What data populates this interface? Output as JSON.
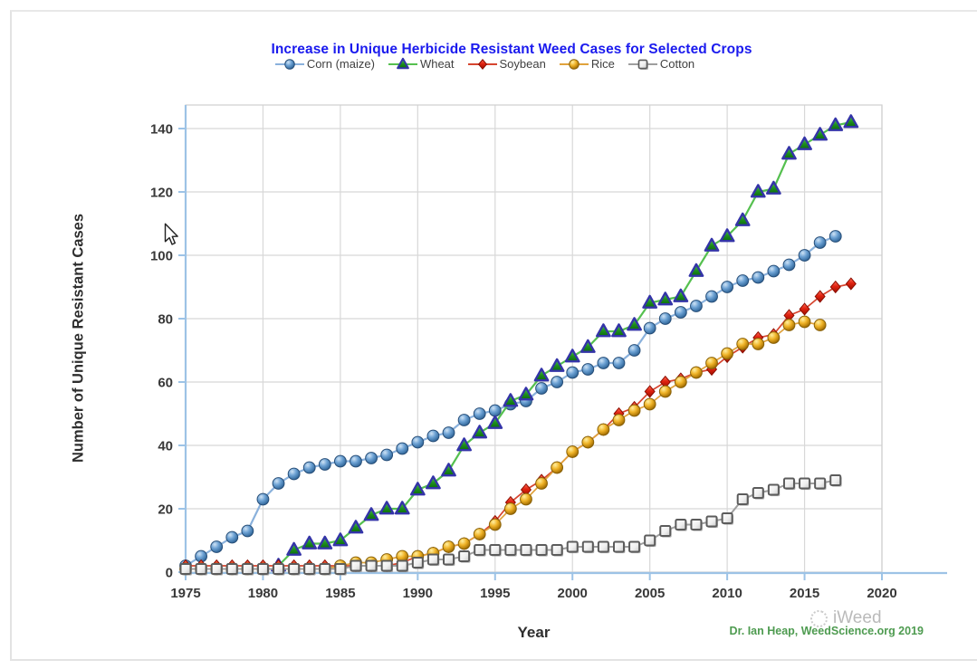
{
  "chart_data": {
    "type": "line",
    "title": "Increase in Unique Herbicide Resistant Weed Cases for Selected Crops",
    "xlabel": "Year",
    "ylabel": "Number of Unique Resistant Cases",
    "xlim": [
      1975,
      2020
    ],
    "ylim": [
      0,
      147
    ],
    "xticks": [
      1975,
      1980,
      1985,
      1990,
      1995,
      2000,
      2005,
      2010,
      2015,
      2020
    ],
    "yticks": [
      0,
      20,
      40,
      60,
      80,
      100,
      120,
      140
    ],
    "grid": true,
    "legend_position": "top-center",
    "series": [
      {
        "name": "Corn (maize)",
        "marker": "circle",
        "color": "#4f86b8",
        "line_color": "#8ab1dc",
        "edge": "#274e78",
        "points": [
          [
            1975,
            2
          ],
          [
            1976,
            5
          ],
          [
            1977,
            8
          ],
          [
            1978,
            11
          ],
          [
            1979,
            13
          ],
          [
            1980,
            23
          ],
          [
            1981,
            28
          ],
          [
            1982,
            31
          ],
          [
            1983,
            33
          ],
          [
            1984,
            34
          ],
          [
            1985,
            35
          ],
          [
            1986,
            35
          ],
          [
            1987,
            36
          ],
          [
            1988,
            37
          ],
          [
            1989,
            39
          ],
          [
            1990,
            41
          ],
          [
            1991,
            43
          ],
          [
            1992,
            44
          ],
          [
            1993,
            48
          ],
          [
            1994,
            50
          ],
          [
            1995,
            51
          ],
          [
            1996,
            53
          ],
          [
            1997,
            54
          ],
          [
            1998,
            58
          ],
          [
            1999,
            60
          ],
          [
            2000,
            63
          ],
          [
            2001,
            64
          ],
          [
            2002,
            66
          ],
          [
            2003,
            66
          ],
          [
            2004,
            70
          ],
          [
            2005,
            77
          ],
          [
            2006,
            80
          ],
          [
            2007,
            82
          ],
          [
            2008,
            84
          ],
          [
            2009,
            87
          ],
          [
            2010,
            90
          ],
          [
            2011,
            92
          ],
          [
            2012,
            93
          ],
          [
            2013,
            95
          ],
          [
            2014,
            97
          ],
          [
            2015,
            100
          ],
          [
            2016,
            104
          ],
          [
            2017,
            106
          ]
        ]
      },
      {
        "name": "Wheat",
        "marker": "triangle",
        "color": "#15831d",
        "line_color": "#55c04f",
        "edge": "#3434a8",
        "points": [
          [
            1981,
            2
          ],
          [
            1982,
            7
          ],
          [
            1983,
            9
          ],
          [
            1984,
            9
          ],
          [
            1985,
            10
          ],
          [
            1986,
            14
          ],
          [
            1987,
            18
          ],
          [
            1988,
            20
          ],
          [
            1989,
            20
          ],
          [
            1990,
            26
          ],
          [
            1991,
            28
          ],
          [
            1992,
            32
          ],
          [
            1993,
            40
          ],
          [
            1994,
            44
          ],
          [
            1995,
            47
          ],
          [
            1996,
            54
          ],
          [
            1997,
            56
          ],
          [
            1998,
            62
          ],
          [
            1999,
            65
          ],
          [
            2000,
            68
          ],
          [
            2001,
            71
          ],
          [
            2002,
            76
          ],
          [
            2003,
            76
          ],
          [
            2004,
            78
          ],
          [
            2005,
            85
          ],
          [
            2006,
            86
          ],
          [
            2007,
            87
          ],
          [
            2008,
            95
          ],
          [
            2009,
            103
          ],
          [
            2010,
            106
          ],
          [
            2011,
            111
          ],
          [
            2012,
            120
          ],
          [
            2013,
            121
          ],
          [
            2014,
            132
          ],
          [
            2015,
            135
          ],
          [
            2016,
            138
          ],
          [
            2017,
            141
          ],
          [
            2018,
            142
          ]
        ]
      },
      {
        "name": "Soybean",
        "marker": "diamond",
        "color": "#d01606",
        "line_color": "#d6452f",
        "edge": "#8a0d00",
        "points": [
          [
            1975,
            2
          ],
          [
            1976,
            2
          ],
          [
            1977,
            2
          ],
          [
            1978,
            2
          ],
          [
            1979,
            2
          ],
          [
            1980,
            2
          ],
          [
            1981,
            2
          ],
          [
            1982,
            2
          ],
          [
            1983,
            2
          ],
          [
            1984,
            2
          ],
          [
            1985,
            2
          ],
          [
            1986,
            2
          ],
          [
            1987,
            2
          ],
          [
            1988,
            2
          ],
          [
            1989,
            3
          ],
          [
            1990,
            5
          ],
          [
            1991,
            6
          ],
          [
            1992,
            8
          ],
          [
            1993,
            9
          ],
          [
            1994,
            12
          ],
          [
            1995,
            16
          ],
          [
            1996,
            22
          ],
          [
            1997,
            26
          ],
          [
            1998,
            29
          ],
          [
            1999,
            33
          ],
          [
            2000,
            38
          ],
          [
            2001,
            41
          ],
          [
            2002,
            45
          ],
          [
            2003,
            50
          ],
          [
            2004,
            52
          ],
          [
            2005,
            57
          ],
          [
            2006,
            60
          ],
          [
            2007,
            61
          ],
          [
            2008,
            63
          ],
          [
            2009,
            64
          ],
          [
            2010,
            68
          ],
          [
            2011,
            71
          ],
          [
            2012,
            74
          ],
          [
            2013,
            75
          ],
          [
            2014,
            81
          ],
          [
            2015,
            83
          ],
          [
            2016,
            87
          ],
          [
            2017,
            90
          ],
          [
            2018,
            91
          ]
        ]
      },
      {
        "name": "Rice",
        "marker": "circle",
        "color": "#e2a317",
        "line_color": "#e0a23c",
        "edge": "#8a6208",
        "points": [
          [
            1975,
            1
          ],
          [
            1976,
            1
          ],
          [
            1977,
            1
          ],
          [
            1978,
            1
          ],
          [
            1979,
            1
          ],
          [
            1980,
            1
          ],
          [
            1981,
            1
          ],
          [
            1982,
            1
          ],
          [
            1983,
            1
          ],
          [
            1984,
            1
          ],
          [
            1985,
            2
          ],
          [
            1986,
            3
          ],
          [
            1987,
            3
          ],
          [
            1988,
            4
          ],
          [
            1989,
            5
          ],
          [
            1990,
            5
          ],
          [
            1991,
            6
          ],
          [
            1992,
            8
          ],
          [
            1993,
            9
          ],
          [
            1994,
            12
          ],
          [
            1995,
            15
          ],
          [
            1996,
            20
          ],
          [
            1997,
            23
          ],
          [
            1998,
            28
          ],
          [
            1999,
            33
          ],
          [
            2000,
            38
          ],
          [
            2001,
            41
          ],
          [
            2002,
            45
          ],
          [
            2003,
            48
          ],
          [
            2004,
            51
          ],
          [
            2005,
            53
          ],
          [
            2006,
            57
          ],
          [
            2007,
            60
          ],
          [
            2008,
            63
          ],
          [
            2009,
            66
          ],
          [
            2010,
            69
          ],
          [
            2011,
            72
          ],
          [
            2012,
            72
          ],
          [
            2013,
            74
          ],
          [
            2014,
            78
          ],
          [
            2015,
            79
          ],
          [
            2016,
            78
          ]
        ]
      },
      {
        "name": "Cotton",
        "marker": "square",
        "color": "#f2f2f2",
        "line_color": "#9e9e9e",
        "edge": "#5c5c5c",
        "points": [
          [
            1975,
            1
          ],
          [
            1976,
            1
          ],
          [
            1977,
            1
          ],
          [
            1978,
            1
          ],
          [
            1979,
            1
          ],
          [
            1980,
            1
          ],
          [
            1981,
            1
          ],
          [
            1982,
            1
          ],
          [
            1983,
            1
          ],
          [
            1984,
            1
          ],
          [
            1985,
            1
          ],
          [
            1986,
            2
          ],
          [
            1987,
            2
          ],
          [
            1988,
            2
          ],
          [
            1989,
            2
          ],
          [
            1990,
            3
          ],
          [
            1991,
            4
          ],
          [
            1992,
            4
          ],
          [
            1993,
            5
          ],
          [
            1994,
            7
          ],
          [
            1995,
            7
          ],
          [
            1996,
            7
          ],
          [
            1997,
            7
          ],
          [
            1998,
            7
          ],
          [
            1999,
            7
          ],
          [
            2000,
            8
          ],
          [
            2001,
            8
          ],
          [
            2002,
            8
          ],
          [
            2003,
            8
          ],
          [
            2004,
            8
          ],
          [
            2005,
            10
          ],
          [
            2006,
            13
          ],
          [
            2007,
            15
          ],
          [
            2008,
            15
          ],
          [
            2009,
            16
          ],
          [
            2010,
            17
          ],
          [
            2011,
            23
          ],
          [
            2012,
            25
          ],
          [
            2013,
            26
          ],
          [
            2014,
            28
          ],
          [
            2015,
            28
          ],
          [
            2016,
            28
          ],
          [
            2017,
            29
          ]
        ]
      }
    ]
  },
  "footer": {
    "credit": "Dr. Ian Heap, WeedScience.org 2019",
    "watermark": "iWeed"
  },
  "colors": {
    "title": "#1a1aee",
    "axis_line": "#9dc3e6",
    "gridline": "#d8d8d8",
    "frame": "#cfcfcf",
    "tick_label": "#383838",
    "credit_green": "#4e9b50",
    "watermark_gray": "#aeaeae"
  }
}
